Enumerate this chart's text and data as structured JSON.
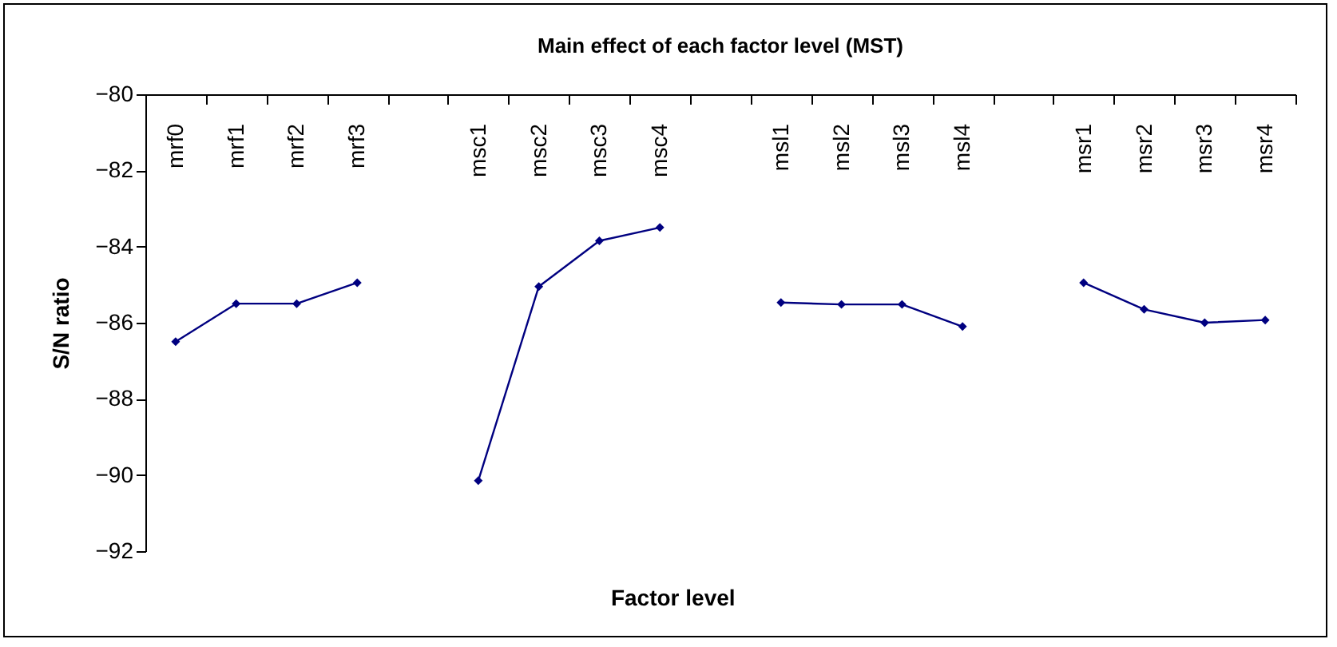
{
  "chart_data": {
    "type": "line",
    "title": "Main effect of each factor level (MST)",
    "xlabel": "Factor level",
    "ylabel": "S/N ratio",
    "categories": [
      "mrf0",
      "mrf1",
      "mrf2",
      "mrf3",
      null,
      "msc1",
      "msc2",
      "msc3",
      "msc4",
      null,
      "msl1",
      "msl2",
      "msl3",
      "msl4",
      null,
      "msr1",
      "msr2",
      "msr3",
      "msr4"
    ],
    "series": [
      {
        "color": "#000080",
        "values": [
          -86.5,
          -85.5,
          -85.5,
          -84.95,
          null,
          -90.15,
          -85.05,
          -83.85,
          -83.5,
          null,
          -85.47,
          -85.52,
          -85.52,
          -86.1,
          null,
          -84.95,
          -85.65,
          -86.0,
          -85.93
        ]
      }
    ],
    "ylim": [
      -92,
      -80
    ],
    "yticks": [
      -92,
      -90,
      -88,
      -86,
      -84,
      -82,
      -80
    ],
    "grid": false,
    "marker": "diamond",
    "line_style": "solid"
  }
}
